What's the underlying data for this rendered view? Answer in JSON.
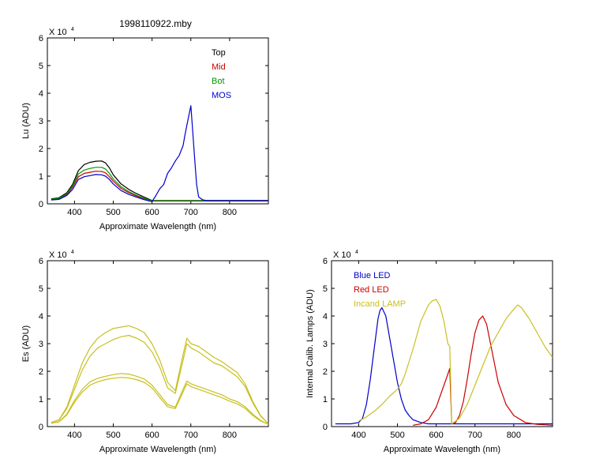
{
  "figure_title": "1998110922.mby",
  "chart_data": [
    {
      "id": "lu",
      "type": "line",
      "title": "1998110922.mby",
      "xlabel": "Approximate Wavelength (nm)",
      "ylabel": "Lu (ADU)",
      "y_multiplier": "X 10",
      "y_exponent": "4",
      "xlim": [
        330,
        900
      ],
      "ylim": [
        0,
        6
      ],
      "xticks": [
        400,
        500,
        600,
        700,
        800
      ],
      "yticks": [
        0,
        1,
        2,
        3,
        4,
        5,
        6
      ],
      "xtick_labels": [
        "400",
        "500",
        "600",
        "700",
        "800"
      ],
      "ytick_labels": [
        "0",
        "1",
        "2",
        "3",
        "4",
        "5",
        "6"
      ],
      "legend": [
        "Top",
        "Mid",
        "Bot",
        "MOS"
      ],
      "legend_colors": [
        "#000000",
        "#cc0000",
        "#009900",
        "#0000cc"
      ],
      "series": [
        {
          "name": "Top",
          "color": "#000000",
          "x": [
            340,
            360,
            380,
            395,
            410,
            425,
            440,
            455,
            470,
            480,
            490,
            500,
            520,
            540,
            560,
            580,
            600,
            620,
            650,
            700,
            750,
            800,
            900
          ],
          "y": [
            0.18,
            0.22,
            0.4,
            0.7,
            1.2,
            1.42,
            1.5,
            1.54,
            1.55,
            1.48,
            1.3,
            1.05,
            0.72,
            0.52,
            0.37,
            0.24,
            0.12,
            0.12,
            0.12,
            0.12,
            0.12,
            0.12,
            0.12
          ]
        },
        {
          "name": "Mid",
          "color": "#cc0000",
          "x": [
            340,
            360,
            380,
            395,
            410,
            425,
            440,
            455,
            470,
            480,
            490,
            500,
            520,
            540,
            560,
            580,
            600,
            620,
            650,
            700,
            750,
            800,
            900
          ],
          "y": [
            0.15,
            0.18,
            0.33,
            0.6,
            0.98,
            1.1,
            1.14,
            1.18,
            1.17,
            1.12,
            0.98,
            0.82,
            0.56,
            0.4,
            0.28,
            0.18,
            0.1,
            0.1,
            0.1,
            0.1,
            0.1,
            0.1,
            0.1
          ]
        },
        {
          "name": "Bot",
          "color": "#009900",
          "x": [
            340,
            360,
            380,
            395,
            410,
            425,
            440,
            455,
            470,
            480,
            490,
            500,
            520,
            540,
            560,
            580,
            600,
            620,
            650,
            700,
            750,
            800,
            900
          ],
          "y": [
            0.16,
            0.2,
            0.36,
            0.65,
            1.08,
            1.22,
            1.28,
            1.32,
            1.32,
            1.26,
            1.1,
            0.9,
            0.62,
            0.44,
            0.31,
            0.2,
            0.11,
            0.11,
            0.11,
            0.11,
            0.11,
            0.11,
            0.11
          ]
        },
        {
          "name": "MOS",
          "color": "#0000cc",
          "x": [
            340,
            360,
            380,
            395,
            410,
            425,
            440,
            455,
            470,
            480,
            490,
            500,
            520,
            540,
            560,
            580,
            600,
            610,
            620,
            630,
            640,
            650,
            660,
            670,
            680,
            685,
            690,
            695,
            700,
            705,
            710,
            715,
            720,
            730,
            740,
            760,
            800,
            850,
            900
          ],
          "y": [
            0.14,
            0.16,
            0.3,
            0.52,
            0.88,
            0.98,
            1.02,
            1.06,
            1.05,
            1.0,
            0.88,
            0.72,
            0.48,
            0.34,
            0.24,
            0.15,
            0.08,
            0.3,
            0.55,
            0.7,
            1.1,
            1.3,
            1.55,
            1.75,
            2.1,
            2.5,
            2.85,
            3.2,
            3.55,
            2.6,
            1.6,
            0.7,
            0.25,
            0.15,
            0.12,
            0.12,
            0.12,
            0.12,
            0.12
          ]
        }
      ]
    },
    {
      "id": "es",
      "type": "line",
      "xlabel": "Approximate Wavelength (nm)",
      "ylabel": "Es (ADU)",
      "y_multiplier": "X 10",
      "y_exponent": "4",
      "xlim": [
        330,
        900
      ],
      "ylim": [
        0,
        6
      ],
      "xticks": [
        400,
        500,
        600,
        700,
        800
      ],
      "yticks": [
        0,
        1,
        2,
        3,
        4,
        5,
        6
      ],
      "xtick_labels": [
        "400",
        "500",
        "600",
        "700",
        "800"
      ],
      "ytick_labels": [
        "0",
        "1",
        "2",
        "3",
        "4",
        "5",
        "6"
      ],
      "series": [
        {
          "color": "#c8c020",
          "x": [
            340,
            360,
            380,
            400,
            420,
            440,
            460,
            480,
            500,
            520,
            540,
            560,
            580,
            600,
            620,
            640,
            660,
            680,
            690,
            700,
            720,
            740,
            760,
            780,
            800,
            820,
            840,
            860,
            880,
            900
          ],
          "y": [
            0.15,
            0.25,
            0.7,
            1.5,
            2.3,
            2.85,
            3.2,
            3.4,
            3.55,
            3.6,
            3.65,
            3.55,
            3.4,
            3.0,
            2.4,
            1.6,
            1.3,
            2.6,
            3.2,
            3.0,
            2.9,
            2.7,
            2.5,
            2.35,
            2.15,
            1.95,
            1.55,
            0.9,
            0.4,
            0.1
          ]
        },
        {
          "color": "#c8c020",
          "x": [
            340,
            360,
            380,
            400,
            420,
            440,
            460,
            480,
            500,
            520,
            540,
            560,
            580,
            600,
            620,
            640,
            660,
            680,
            690,
            700,
            720,
            740,
            760,
            780,
            800,
            820,
            840,
            860,
            880,
            900
          ],
          "y": [
            0.15,
            0.24,
            0.65,
            1.35,
            2.05,
            2.55,
            2.85,
            3.0,
            3.15,
            3.25,
            3.3,
            3.2,
            3.05,
            2.7,
            2.15,
            1.4,
            1.2,
            2.4,
            3.0,
            2.85,
            2.7,
            2.5,
            2.3,
            2.2,
            2.0,
            1.8,
            1.45,
            0.85,
            0.38,
            0.1
          ]
        },
        {
          "color": "#c8c020",
          "x": [
            340,
            360,
            380,
            400,
            420,
            440,
            460,
            480,
            500,
            520,
            540,
            560,
            580,
            600,
            620,
            640,
            660,
            680,
            690,
            700,
            720,
            740,
            760,
            780,
            800,
            820,
            840,
            860,
            880,
            900
          ],
          "y": [
            0.12,
            0.18,
            0.45,
            0.95,
            1.35,
            1.62,
            1.75,
            1.82,
            1.88,
            1.92,
            1.9,
            1.82,
            1.72,
            1.5,
            1.15,
            0.8,
            0.7,
            1.35,
            1.65,
            1.55,
            1.45,
            1.35,
            1.25,
            1.15,
            1.0,
            0.9,
            0.72,
            0.45,
            0.22,
            0.08
          ]
        },
        {
          "color": "#c8c020",
          "x": [
            340,
            360,
            380,
            400,
            420,
            440,
            460,
            480,
            500,
            520,
            540,
            560,
            580,
            600,
            620,
            640,
            660,
            680,
            690,
            700,
            720,
            740,
            760,
            780,
            800,
            820,
            840,
            860,
            880,
            900
          ],
          "y": [
            0.12,
            0.17,
            0.42,
            0.88,
            1.25,
            1.5,
            1.62,
            1.7,
            1.75,
            1.78,
            1.76,
            1.7,
            1.6,
            1.4,
            1.05,
            0.72,
            0.65,
            1.25,
            1.55,
            1.45,
            1.35,
            1.25,
            1.15,
            1.05,
            0.92,
            0.82,
            0.66,
            0.4,
            0.2,
            0.08
          ]
        }
      ]
    },
    {
      "id": "lamps",
      "type": "line",
      "xlabel": "Approximate Wavelength (nm)",
      "ylabel": "Internal Calib. Lamps (ADU)",
      "y_multiplier": "X 10",
      "y_exponent": "4",
      "xlim": [
        330,
        900
      ],
      "ylim": [
        0,
        6
      ],
      "xticks": [
        400,
        500,
        600,
        700,
        800
      ],
      "yticks": [
        0,
        1,
        2,
        3,
        4,
        5,
        6
      ],
      "xtick_labels": [
        "400",
        "500",
        "600",
        "700",
        "800"
      ],
      "ytick_labels": [
        "0",
        "1",
        "2",
        "3",
        "4",
        "5",
        "6"
      ],
      "legend": [
        "Blue LED",
        "Red LED",
        "Incand LAMP"
      ],
      "legend_colors": [
        "#0000cc",
        "#cc0000",
        "#c8c020"
      ],
      "series": [
        {
          "name": "Blue LED",
          "color": "#0000cc",
          "x": [
            340,
            380,
            400,
            410,
            420,
            430,
            440,
            450,
            455,
            460,
            470,
            480,
            490,
            500,
            510,
            520,
            530,
            540,
            560,
            580,
            600,
            640,
            700,
            800,
            900
          ],
          "y": [
            0.1,
            0.1,
            0.15,
            0.3,
            0.8,
            1.7,
            2.8,
            3.9,
            4.2,
            4.3,
            4.0,
            3.2,
            2.4,
            1.6,
            1.0,
            0.6,
            0.4,
            0.25,
            0.15,
            0.1,
            0.1,
            0.1,
            0.1,
            0.1,
            0.1
          ]
        },
        {
          "name": "Red LED",
          "color": "#cc0000",
          "x": [
            540,
            560,
            580,
            600,
            610,
            620,
            630,
            635,
            640,
            650,
            660,
            670,
            680,
            690,
            700,
            710,
            720,
            730,
            740,
            750,
            760,
            780,
            800,
            830,
            860,
            900
          ],
          "y": [
            0.05,
            0.1,
            0.25,
            0.7,
            1.1,
            1.5,
            1.9,
            2.1,
            0.1,
            0.15,
            0.4,
            0.9,
            1.7,
            2.6,
            3.4,
            3.85,
            4.0,
            3.7,
            3.0,
            2.3,
            1.6,
            0.8,
            0.4,
            0.15,
            0.08,
            0.05
          ]
        },
        {
          "name": "Incand LAMP",
          "color": "#c8c020",
          "x": [
            400,
            420,
            440,
            460,
            480,
            500,
            510,
            520,
            540,
            560,
            580,
            590,
            600,
            610,
            620,
            630,
            635,
            640,
            660,
            680,
            700,
            720,
            740,
            760,
            780,
            800,
            810,
            820,
            840,
            860,
            880,
            900
          ],
          "y": [
            0.2,
            0.35,
            0.55,
            0.8,
            1.1,
            1.35,
            1.55,
            1.9,
            2.8,
            3.8,
            4.4,
            4.55,
            4.6,
            4.35,
            3.8,
            3.0,
            2.9,
            0.1,
            0.3,
            0.8,
            1.5,
            2.2,
            2.9,
            3.4,
            3.9,
            4.25,
            4.4,
            4.3,
            3.9,
            3.4,
            2.9,
            2.5
          ]
        }
      ]
    }
  ]
}
